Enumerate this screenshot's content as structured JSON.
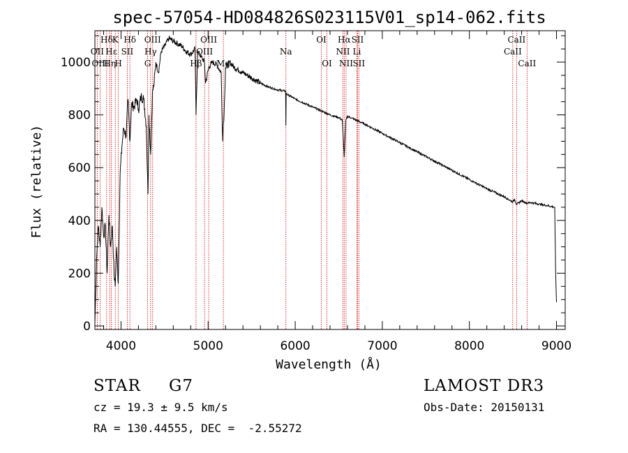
{
  "chart_data": {
    "type": "line",
    "title": "spec-57054-HD084826S023115V01_sp14-062.fits",
    "xlabel": "Wavelength (Å)",
    "ylabel": "Flux (relative)",
    "xlim": [
      3700,
      9100
    ],
    "ylim": [
      0,
      1100
    ],
    "xticks": [
      4000,
      5000,
      6000,
      7000,
      8000,
      9000
    ],
    "xtick_labels": [
      "4000",
      "5000",
      "6000",
      "7000",
      "8000",
      "9000"
    ],
    "yticks": [
      0,
      200,
      400,
      600,
      800,
      1000
    ],
    "ytick_labels": [
      "0",
      "200",
      "400",
      "600",
      "800",
      "1000"
    ],
    "series": [
      {
        "name": "spectrum",
        "x": [
          3700,
          3720,
          3740,
          3760,
          3780,
          3800,
          3820,
          3840,
          3860,
          3880,
          3900,
          3920,
          3933,
          3950,
          3968,
          3990,
          4010,
          4030,
          4060,
          4080,
          4102,
          4120,
          4150,
          4180,
          4200,
          4230,
          4260,
          4290,
          4310,
          4320,
          4340,
          4360,
          4380,
          4400,
          4430,
          4460,
          4500,
          4550,
          4600,
          4650,
          4700,
          4750,
          4800,
          4850,
          4861,
          4880,
          4920,
          4959,
          4970,
          5007,
          5050,
          5100,
          5150,
          5167,
          5173,
          5183,
          5200,
          5250,
          5300,
          5350,
          5400,
          5450,
          5500,
          5600,
          5700,
          5800,
          5890,
          5893,
          5896,
          5950,
          6000,
          6100,
          6200,
          6300,
          6400,
          6500,
          6540,
          6563,
          6580,
          6600,
          6700,
          6800,
          7000,
          7200,
          7400,
          7600,
          7800,
          8000,
          8200,
          8400,
          8498,
          8520,
          8542,
          8600,
          8662,
          8700,
          8800,
          8900,
          8980,
          8990,
          9000
        ],
        "y": [
          10,
          260,
          380,
          300,
          450,
          340,
          380,
          200,
          420,
          300,
          380,
          200,
          150,
          300,
          160,
          580,
          680,
          750,
          720,
          860,
          700,
          840,
          830,
          860,
          820,
          870,
          860,
          760,
          500,
          800,
          650,
          880,
          920,
          1000,
          960,
          1040,
          1060,
          1090,
          1080,
          1070,
          1060,
          1040,
          1030,
          1050,
          800,
          1040,
          1020,
          1000,
          920,
          980,
          1000,
          990,
          960,
          700,
          760,
          800,
          980,
          1000,
          980,
          970,
          960,
          950,
          940,
          920,
          905,
          895,
          890,
          760,
          880,
          870,
          860,
          845,
          830,
          815,
          800,
          790,
          780,
          640,
          775,
          795,
          780,
          765,
          730,
          695,
          660,
          625,
          590,
          555,
          520,
          490,
          470,
          480,
          460,
          475,
          465,
          468,
          462,
          456,
          450,
          200,
          90
        ]
      }
    ],
    "lines": [
      {
        "label": "Hδ",
        "x": 3835,
        "row": 1
      },
      {
        "label": "OII",
        "x": 3727,
        "row": 2
      },
      {
        "label": "OIII",
        "x": 3760,
        "row": 3
      },
      {
        "label": "Hε",
        "x": 3889,
        "row": 2
      },
      {
        "label": "Hη",
        "x": 3870,
        "row": 3
      },
      {
        "label": "K",
        "x": 3934,
        "row": 1
      },
      {
        "label": "SII",
        "x": 4072,
        "row": 2
      },
      {
        "label": "H",
        "x": 3969,
        "row": 3
      },
      {
        "label": "Hδ",
        "x": 4102,
        "row": 1
      },
      {
        "label": "OIII",
        "x": 4363,
        "row": 1
      },
      {
        "label": "Hγ",
        "x": 4340,
        "row": 2
      },
      {
        "label": "G",
        "x": 4305,
        "row": 3
      },
      {
        "label": "OIII",
        "x": 5007,
        "row": 1
      },
      {
        "label": "OIII",
        "x": 4959,
        "row": 2
      },
      {
        "label": "Hβ",
        "x": 4861,
        "row": 3
      },
      {
        "label": "Mg",
        "x": 5175,
        "row": 3
      },
      {
        "label": "Na",
        "x": 5893,
        "row": 2
      },
      {
        "label": "OI",
        "x": 6300,
        "row": 1
      },
      {
        "label": "OI",
        "x": 6364,
        "row": 3
      },
      {
        "label": "Hα",
        "x": 6563,
        "row": 1
      },
      {
        "label": "NII",
        "x": 6548,
        "row": 2
      },
      {
        "label": "NII",
        "x": 6584,
        "row": 3
      },
      {
        "label": "SII",
        "x": 6716,
        "row": 1
      },
      {
        "label": "Li",
        "x": 6708,
        "row": 2
      },
      {
        "label": "SII",
        "x": 6731,
        "row": 3
      },
      {
        "label": "CaII",
        "x": 8542,
        "row": 1
      },
      {
        "label": "CaII",
        "x": 8498,
        "row": 2
      },
      {
        "label": "CaII",
        "x": 8662,
        "row": 3
      }
    ],
    "colors": {
      "axes": "#000000",
      "spectrum": "#000000",
      "line_markers": "#cc0000"
    }
  },
  "info": {
    "object_class": "STAR",
    "subclass": "G7",
    "survey": "LAMOST DR3",
    "redshift": "cz = 19.3 ± 9.5 km/s",
    "obs_date": "Obs-Date: 20150131",
    "coords": "RA = 130.44555, DEC =  -2.55272"
  }
}
